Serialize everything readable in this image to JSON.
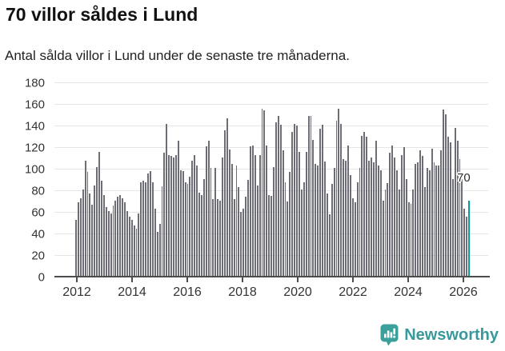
{
  "header": {
    "title": "70 villor såldes i Lund",
    "subtitle": "Antal sålda villor i Lund under de senaste tre månaderna."
  },
  "chart_data": {
    "type": "bar",
    "title": "70 villor såldes i Lund",
    "subtitle": "Antal sålda villor i Lund under de senaste tre månaderna.",
    "ylabel": "",
    "xlabel": "",
    "ylim": [
      0,
      180
    ],
    "yticks": [
      0,
      20,
      40,
      60,
      80,
      100,
      120,
      140,
      160,
      180
    ],
    "xtick_years": [
      2012,
      2014,
      2016,
      2018,
      2020,
      2022,
      2024,
      2026
    ],
    "grid": true,
    "legend_position": "none",
    "frequency": "monthly",
    "x_first_bar": "2012-01",
    "x_last_bar": "2026-02",
    "bar_color": "#6d6d75",
    "highlight_color": "#009f9b",
    "highlight_last_bar": true,
    "highlight_value_label": "70",
    "values": [
      52,
      68,
      72,
      80,
      107,
      96,
      76,
      66,
      84,
      101,
      115,
      88,
      75,
      64,
      60,
      58,
      65,
      70,
      73,
      75,
      72,
      68,
      60,
      55,
      52,
      47,
      44,
      58,
      87,
      88,
      87,
      95,
      97,
      87,
      62,
      41,
      48,
      83,
      114,
      141,
      112,
      111,
      110,
      112,
      125,
      98,
      97,
      87,
      85,
      92,
      107,
      112,
      102,
      77,
      75,
      90,
      120,
      125,
      100,
      71,
      100,
      71,
      70,
      110,
      135,
      146,
      117,
      104,
      71,
      102,
      82,
      59,
      62,
      73,
      89,
      120,
      121,
      112,
      84,
      112,
      155,
      153,
      121,
      75,
      74,
      101,
      142,
      148,
      140,
      116,
      87,
      69,
      96,
      133,
      141,
      139,
      115,
      80,
      87,
      115,
      148,
      148,
      126,
      104,
      102,
      136,
      140,
      106,
      76,
      57,
      85,
      100,
      144,
      155,
      141,
      108,
      107,
      121,
      93,
      72,
      68,
      87,
      100,
      130,
      133,
      129,
      107,
      110,
      105,
      125,
      102,
      98,
      70,
      80,
      86,
      114,
      121,
      110,
      98,
      80,
      112,
      119,
      90,
      68,
      67,
      80,
      104,
      105,
      116,
      111,
      82,
      100,
      98,
      118,
      105,
      102,
      102,
      116,
      154,
      150,
      129,
      124,
      90,
      137,
      125,
      108,
      90,
      62,
      55,
      70
    ]
  },
  "footer": {
    "brand": "Newsworthy",
    "brand_color": "#38999b",
    "logo_icon": "bar-chart-speech-bubble-icon"
  },
  "colors": {
    "background": "#ffffff",
    "gridline": "#e6e6e6",
    "axis": "#4d4d4d",
    "tick_label": "#333333",
    "bar": "#6d6d75",
    "highlight": "#009f9b"
  }
}
